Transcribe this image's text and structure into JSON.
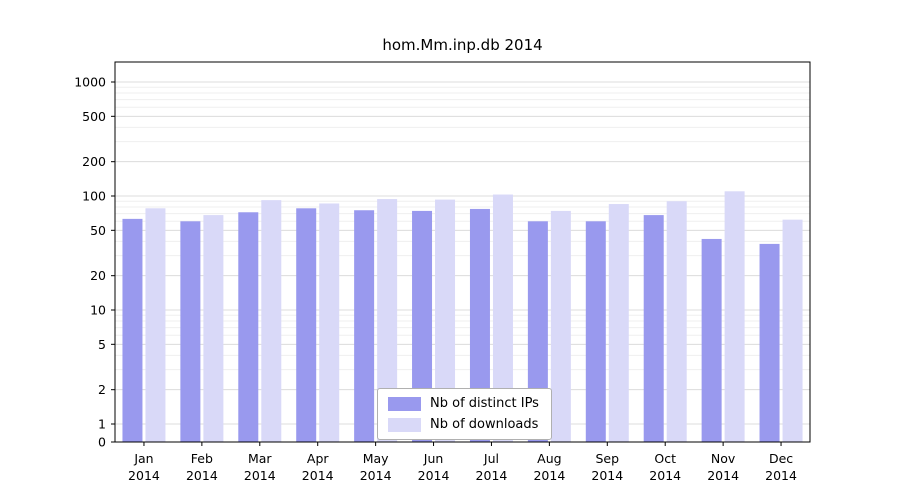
{
  "chart_data": {
    "type": "bar",
    "title": "hom.Mm.inp.db 2014",
    "year": "2014",
    "categories": [
      "Jan",
      "Feb",
      "Mar",
      "Apr",
      "May",
      "Jun",
      "Jul",
      "Aug",
      "Sep",
      "Oct",
      "Nov",
      "Dec"
    ],
    "series": [
      {
        "name": "Nb of distinct IPs",
        "color": "#9999ee",
        "values": [
          63,
          60,
          72,
          78,
          75,
          74,
          77,
          60,
          60,
          68,
          42,
          38
        ]
      },
      {
        "name": "Nb of downloads",
        "color": "#d9d9f8",
        "values": [
          78,
          68,
          92,
          86,
          94,
          93,
          103,
          74,
          85,
          90,
          110,
          62
        ]
      }
    ],
    "yticks": [
      0,
      1,
      2,
      5,
      10,
      20,
      50,
      100,
      200,
      500,
      1000
    ],
    "yscale": "symlog",
    "ylim": [
      0,
      1000
    ],
    "grid": true,
    "legend_position": "bottom-center",
    "colors": {
      "grid_minor": "#efefef",
      "grid_major": "#dcdcdc",
      "axis": "#000000",
      "text": "#000000"
    }
  }
}
